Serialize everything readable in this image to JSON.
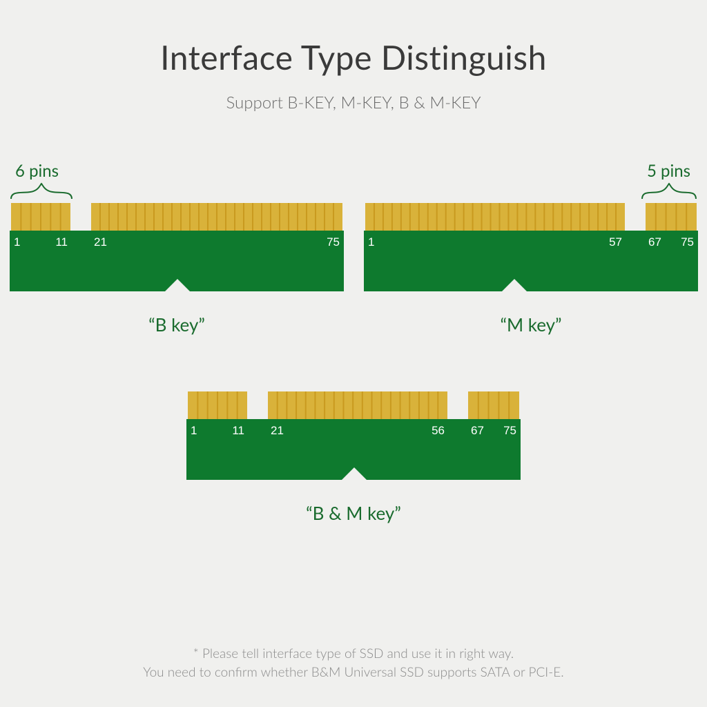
{
  "title": "Interface Type Distinguish",
  "subtitle": "Support B-KEY, M-KEY, B & M-KEY",
  "footnote_line1": "* Please tell interface type of SSD and use it in right way.",
  "footnote_line2": "You need to confirm whether B&M Universal SSD supports SATA or PCI-E.",
  "colors": {
    "pcb": "#0e7a2e",
    "pin_fill": "#d9b23a",
    "pin_stripe": "#c99a1f",
    "text_on_pcb": "#ffffff",
    "background": "#f0f0ee",
    "label_green": "#1a6b2e"
  },
  "b_key": {
    "pins_label": "6 pins",
    "caption": "“B key”",
    "pin_numbers": {
      "a": "1",
      "b": "11",
      "c": "21",
      "d": "75"
    }
  },
  "m_key": {
    "pins_label": "5 pins",
    "caption": "“M key”",
    "pin_numbers": {
      "a": "1",
      "b": "57",
      "c": "67",
      "d": "75"
    }
  },
  "bm_key": {
    "caption": "“B & M key”",
    "pin_numbers": {
      "a": "1",
      "b": "11",
      "c": "21",
      "d": "56",
      "e": "67",
      "f": "75"
    }
  },
  "geometry_note": "All connectors drawn at identical width; pin blocks are gold bars with darker vertical stripes; PCB body has a downward-pointing notch triangle on its bottom edge near center-left."
}
